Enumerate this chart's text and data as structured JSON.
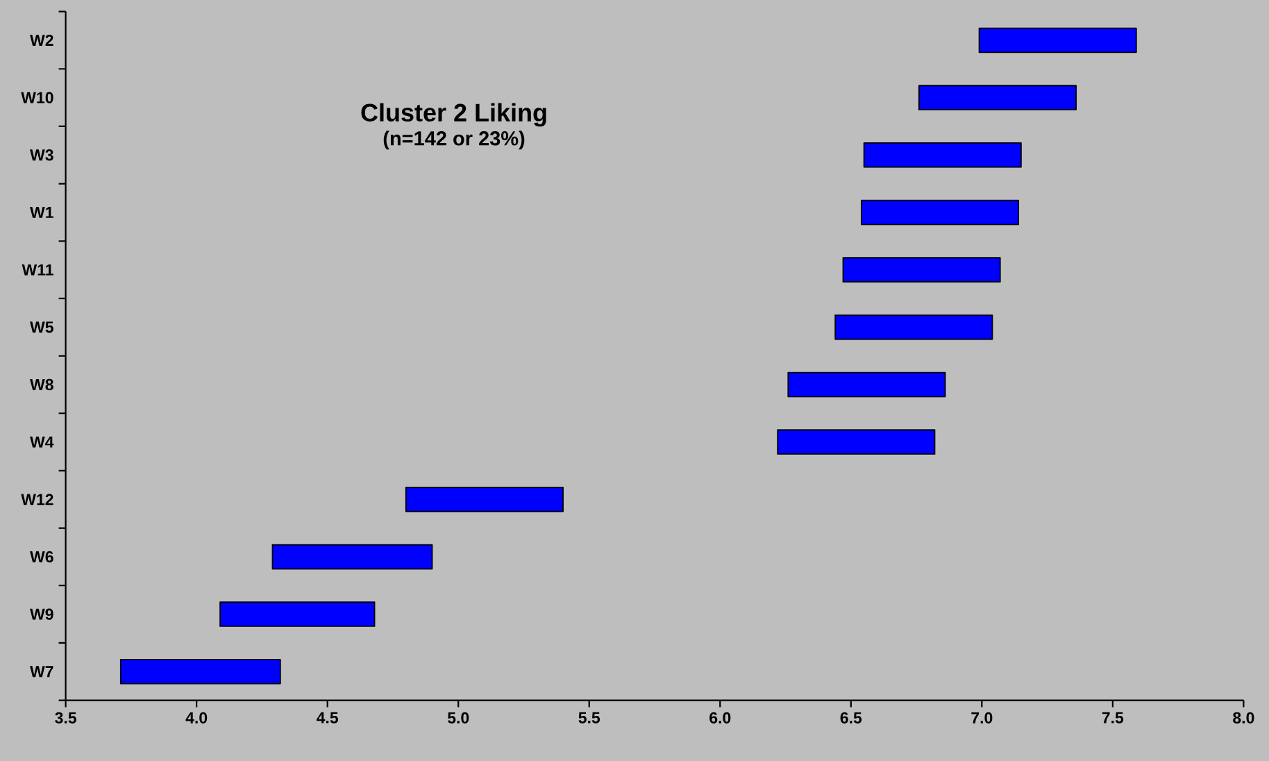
{
  "chart_data": {
    "type": "bar",
    "orientation": "horizontal",
    "title": "Cluster 2 Liking",
    "subtitle": "(n=142 or 23%)",
    "categories": [
      "W2",
      "W10",
      "W3",
      "W1",
      "W11",
      "W5",
      "W8",
      "W4",
      "W12",
      "W6",
      "W9",
      "W7"
    ],
    "base": [
      6.99,
      6.76,
      6.55,
      6.54,
      6.47,
      6.44,
      6.26,
      6.22,
      4.8,
      4.29,
      4.09,
      3.71
    ],
    "values": [
      0.6,
      0.6,
      0.6,
      0.6,
      0.6,
      0.6,
      0.6,
      0.6,
      0.6,
      0.61,
      0.59,
      0.61
    ],
    "color": "#0000ff",
    "xlim": [
      3.5,
      8.0
    ],
    "xticks": [
      3.5,
      {
        "value": 4,
        "label": "4.0"
      },
      4.5,
      {
        "value": 5,
        "label": "5.0"
      },
      5.5,
      {
        "value": 6,
        "label": "6.0"
      },
      6.5,
      {
        "value": 7,
        "label": "7.0"
      },
      7.5,
      {
        "value": 8,
        "label": "8.0"
      }
    ]
  }
}
